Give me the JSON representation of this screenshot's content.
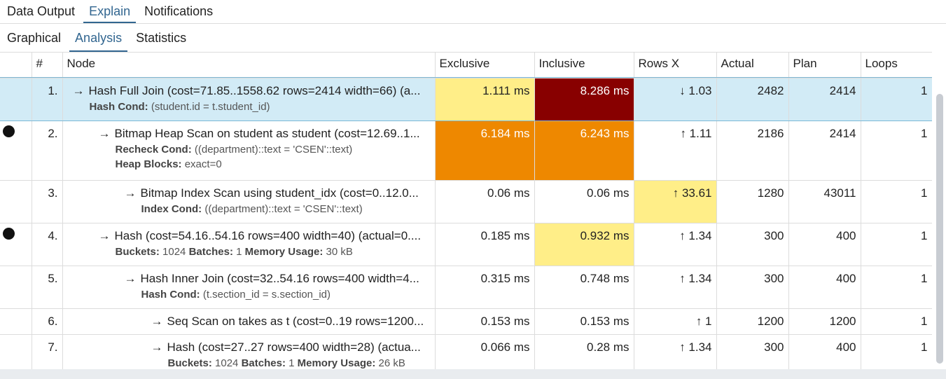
{
  "tabs_top": [
    "Data Output",
    "Explain",
    "Notifications"
  ],
  "tabs_sub": [
    "Graphical",
    "Analysis",
    "Statistics"
  ],
  "columns": {
    "idx": "#",
    "node": "Node",
    "exclusive": "Exclusive",
    "inclusive": "Inclusive",
    "rowsx": "Rows X",
    "actual": "Actual",
    "plan": "Plan",
    "loops": "Loops"
  },
  "rows": [
    {
      "idx": "1.",
      "node": "Hash Full Join (cost=71.85..1558.62 rows=2414 width=66) (a...",
      "sub1_label": "Hash Cond:",
      "sub1_text": " (student.id = t.student_id)",
      "exclusive": "1.111 ms",
      "inclusive": "8.286 ms",
      "rowsx": "↓ 1.03",
      "actual": "2482",
      "plan": "2414",
      "loops": "1"
    },
    {
      "idx": "2.",
      "node": "Bitmap Heap Scan on student as student (cost=12.69..1...",
      "sub1_label": "Recheck Cond:",
      "sub1_text": " ((department)::text = 'CSEN'::text)",
      "sub2_label": "Heap Blocks:",
      "sub2_text": " exact=0",
      "exclusive": "6.184 ms",
      "inclusive": "6.243 ms",
      "rowsx": "↑ 1.11",
      "actual": "2186",
      "plan": "2414",
      "loops": "1"
    },
    {
      "idx": "3.",
      "node": "Bitmap Index Scan using student_idx (cost=0..12.0...",
      "sub1_label": "Index Cond:",
      "sub1_text": " ((department)::text = 'CSEN'::text)",
      "exclusive": "0.06 ms",
      "inclusive": "0.06 ms",
      "rowsx": "↑ 33.61",
      "actual": "1280",
      "plan": "43011",
      "loops": "1"
    },
    {
      "idx": "4.",
      "node": "Hash (cost=54.16..54.16 rows=400 width=40) (actual=0....",
      "sub1_label": "Buckets:",
      "sub1_text": " 1024 ",
      "sub1b_label": "Batches:",
      "sub1b_text": " 1 ",
      "sub1c_label": "Memory Usage:",
      "sub1c_text": " 30 kB",
      "exclusive": "0.185 ms",
      "inclusive": "0.932 ms",
      "rowsx": "↑ 1.34",
      "actual": "300",
      "plan": "400",
      "loops": "1"
    },
    {
      "idx": "5.",
      "node": "Hash Inner Join (cost=32..54.16 rows=400 width=4...",
      "sub1_label": "Hash Cond:",
      "sub1_text": " (t.section_id = s.section_id)",
      "exclusive": "0.315 ms",
      "inclusive": "0.748 ms",
      "rowsx": "↑ 1.34",
      "actual": "300",
      "plan": "400",
      "loops": "1"
    },
    {
      "idx": "6.",
      "node": "Seq Scan on takes as t (cost=0..19 rows=1200...",
      "exclusive": "0.153 ms",
      "inclusive": "0.153 ms",
      "rowsx": "↑ 1",
      "actual": "1200",
      "plan": "1200",
      "loops": "1"
    },
    {
      "idx": "7.",
      "node": "Hash (cost=27..27 rows=400 width=28) (actua...",
      "sub1_label": "Buckets:",
      "sub1_text": " 1024 ",
      "sub1b_label": "Batches:",
      "sub1b_text": " 1 ",
      "sub1c_label": "Memory Usage:",
      "sub1c_text": " 26 kB",
      "exclusive": "0.066 ms",
      "inclusive": "0.28 ms",
      "rowsx": "↑ 1.34",
      "actual": "300",
      "plan": "400",
      "loops": "1"
    }
  ],
  "colors": {
    "accent": "#326690",
    "selected_row": "#d2ebf6",
    "cell_yellow": "#ffee88",
    "cell_orange": "#ee8800",
    "cell_red": "#880000"
  },
  "icons": {
    "arrow": "→",
    "bullet": "filled-circle"
  }
}
